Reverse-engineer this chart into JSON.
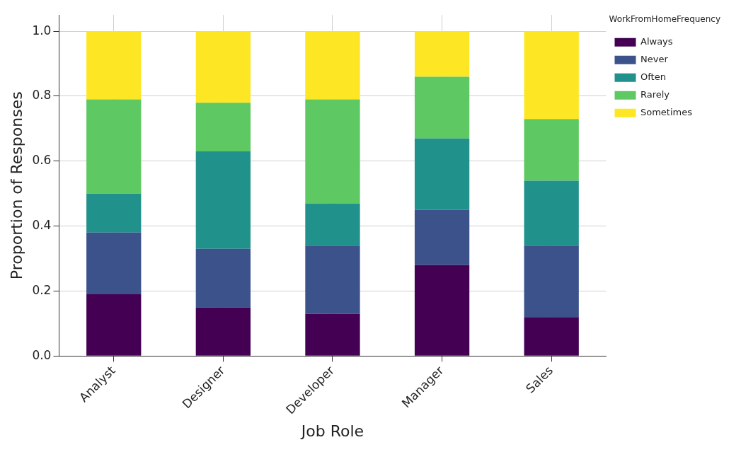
{
  "chart_data": {
    "type": "bar",
    "stacked": true,
    "xlabel": "Job Role",
    "ylabel": "Proportion of Responses",
    "legend_title": "WorkFromHomeFrequency",
    "categories": [
      "Analyst",
      "Designer",
      "Developer",
      "Manager",
      "Sales"
    ],
    "series": [
      {
        "name": "Always",
        "color": "#440154",
        "values": [
          0.19,
          0.15,
          0.13,
          0.28,
          0.12
        ]
      },
      {
        "name": "Never",
        "color": "#3b528b",
        "values": [
          0.19,
          0.18,
          0.21,
          0.17,
          0.22
        ]
      },
      {
        "name": "Often",
        "color": "#21918c",
        "values": [
          0.12,
          0.3,
          0.13,
          0.22,
          0.2
        ]
      },
      {
        "name": "Rarely",
        "color": "#5ec962",
        "values": [
          0.29,
          0.15,
          0.32,
          0.19,
          0.19
        ]
      },
      {
        "name": "Sometimes",
        "color": "#fde725",
        "values": [
          0.21,
          0.22,
          0.21,
          0.14,
          0.27
        ]
      }
    ],
    "ylim": [
      0,
      1.05
    ],
    "yticks": [
      {
        "value": 0,
        "label": "0.0"
      },
      {
        "value": 0.2,
        "label": "0.2"
      },
      {
        "value": 0.4,
        "label": "0.4"
      },
      {
        "value": 0.6,
        "label": "0.6"
      },
      {
        "value": 0.8,
        "label": "0.8"
      },
      {
        "value": 1,
        "label": "1.0"
      }
    ],
    "grid": true,
    "legend": "right"
  }
}
